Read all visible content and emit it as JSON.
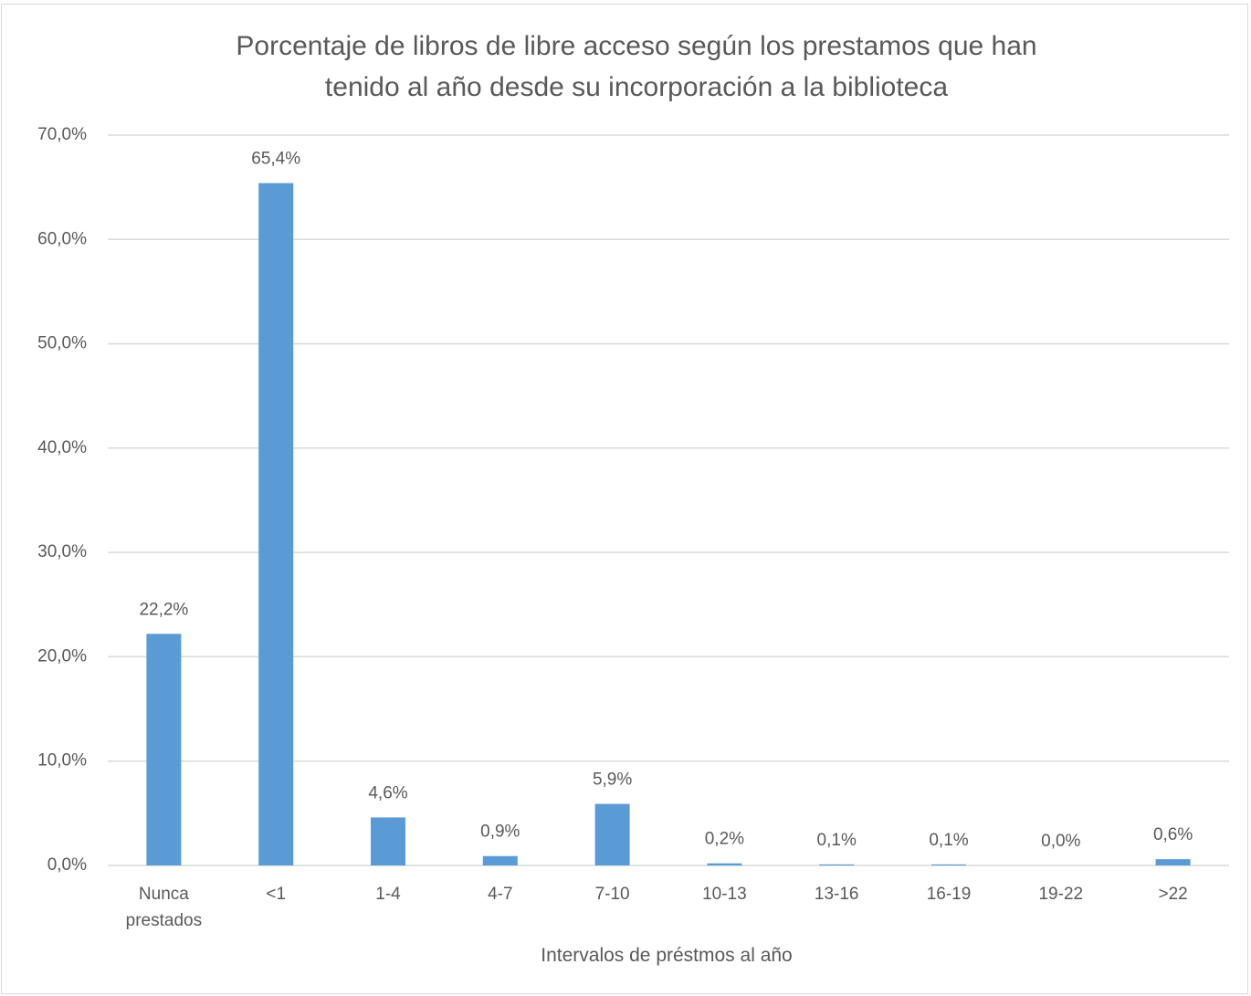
{
  "chart_data": {
    "type": "bar",
    "title": "Porcentaje de libros de libre acceso según los prestamos que han\ntenido al año desde su incorporación a la biblioteca",
    "x_label": "Intervalos de préstmos al año",
    "categories": [
      "Nunca\nprestados",
      "<1",
      "1-4",
      "4-7",
      "7-10",
      "10-13",
      "13-16",
      "16-19",
      "19-22",
      ">22"
    ],
    "values": [
      22.2,
      65.4,
      4.6,
      0.9,
      5.9,
      0.2,
      0.1,
      0.1,
      0.0,
      0.6
    ],
    "value_labels": [
      "22,2%",
      "65,4%",
      "4,6%",
      "0,9%",
      "5,9%",
      "0,2%",
      "0,1%",
      "0,1%",
      "0,0%",
      "0,6%"
    ],
    "color": "#5b9bd5",
    "ylim": [
      0,
      70
    ],
    "yticks": [
      {
        "value": 0,
        "label": "0,0%"
      },
      {
        "value": 10,
        "label": "10,0%"
      },
      {
        "value": 20,
        "label": "20,0%"
      },
      {
        "value": 30,
        "label": "30,0%"
      },
      {
        "value": 40,
        "label": "40,0%"
      },
      {
        "value": 50,
        "label": "50,0%"
      },
      {
        "value": 60,
        "label": "60,0%"
      },
      {
        "value": 70,
        "label": "70,0%"
      }
    ],
    "grid": true
  }
}
